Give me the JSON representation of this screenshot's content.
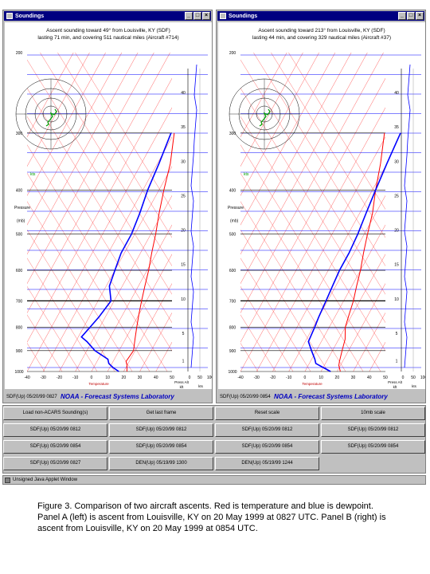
{
  "windows": [
    {
      "title": "Soundings",
      "header_line1": "Ascent sounding toward 49° from Louisville, KY (SDF)",
      "header_line2": "lasting 71 min, and covering 511 nautical miles (Aircraft #714)",
      "status_id": "SDF(Up) 05/20/99 0827",
      "temp": [
        [
          22,
          1000
        ],
        [
          20,
          970
        ],
        [
          18,
          950
        ],
        [
          19,
          900
        ],
        [
          16,
          850
        ],
        [
          13,
          800
        ],
        [
          10,
          750
        ],
        [
          7,
          700
        ],
        [
          4,
          650
        ],
        [
          1,
          600
        ],
        [
          -3,
          550
        ],
        [
          -7,
          500
        ],
        [
          -12,
          450
        ],
        [
          -17,
          400
        ],
        [
          -22,
          350
        ],
        [
          -30,
          300
        ]
      ],
      "dew": [
        [
          17,
          1000
        ],
        [
          12,
          980
        ],
        [
          8,
          960
        ],
        [
          6,
          940
        ],
        [
          -5,
          900
        ],
        [
          -13,
          860
        ],
        [
          -18,
          840
        ],
        [
          -16,
          800
        ],
        [
          -14,
          760
        ],
        [
          -12,
          700
        ],
        [
          -18,
          650
        ],
        [
          -20,
          600
        ],
        [
          -22,
          550
        ],
        [
          -22,
          500
        ],
        [
          -24,
          450
        ],
        [
          -27,
          400
        ],
        [
          -29,
          350
        ],
        [
          -32,
          300
        ]
      ]
    },
    {
      "title": "Soundings",
      "header_line1": "Ascent sounding toward 213° from Louisville, KY (SDF)",
      "header_line2": "lasting 44 min, and covering 329 nautical miles (Aircraft #37)",
      "status_id": "SDF(Up) 05/20/99 0854",
      "temp": [
        [
          22,
          1000
        ],
        [
          19,
          970
        ],
        [
          18,
          950
        ],
        [
          16,
          900
        ],
        [
          14,
          850
        ],
        [
          10,
          800
        ],
        [
          8,
          750
        ],
        [
          6,
          700
        ],
        [
          3,
          650
        ],
        [
          0,
          600
        ],
        [
          -4,
          550
        ],
        [
          -8,
          500
        ],
        [
          -12,
          450
        ],
        [
          -18,
          400
        ],
        [
          -24,
          350
        ],
        [
          -32,
          300
        ]
      ],
      "dew": [
        [
          16,
          1000
        ],
        [
          10,
          980
        ],
        [
          4,
          960
        ],
        [
          2,
          940
        ],
        [
          -3,
          900
        ],
        [
          -8,
          860
        ],
        [
          -9,
          800
        ],
        [
          -10,
          760
        ],
        [
          -11,
          700
        ],
        [
          -12,
          650
        ],
        [
          -13,
          600
        ],
        [
          -13,
          550
        ],
        [
          -14,
          500
        ],
        [
          -16,
          450
        ],
        [
          -18,
          400
        ],
        [
          -20,
          350
        ],
        [
          -22,
          300
        ]
      ]
    }
  ],
  "plot_labels": {
    "pressure_axis": "Pressure",
    "pressure_unit": "(mb)",
    "temperature_axis": "Temperature",
    "kts": "kts",
    "press_alt": "Press Alt",
    "press_alt_unit": "kft",
    "lab_name": "NOAA - Forecast Systems Laboratory"
  },
  "pressure_ticks": [
    "200",
    "300",
    "400",
    "500",
    "600",
    "700",
    "800",
    "900",
    "1000"
  ],
  "altitude_ticks": [
    "1",
    "5",
    "10",
    "15",
    "20",
    "25",
    "30",
    "35",
    "40"
  ],
  "temp_ticks": [
    "-40",
    "-30",
    "-20",
    "-10",
    "0",
    "10",
    "20",
    "30",
    "40",
    "50"
  ],
  "kts_ticks": [
    "0",
    "50",
    "100"
  ],
  "controls": {
    "rows": [
      [
        "Load non-ACARS Sounding(s)",
        "Get last frame",
        "Reset scale",
        "10mb scale"
      ],
      [
        "SDF(Up) 05/20/99 0812",
        "SDF(Up) 05/20/99 0812",
        "SDF(Up) 05/20/99 0812",
        "SDF(Up) 05/20/99 0812"
      ],
      [
        "SDF(Up) 05/20/99 0854",
        "SDF(Up) 05/20/99 0854",
        "SDF(Up) 05/20/99 0854",
        "SDF(Up) 05/20/99 0854"
      ],
      [
        "SDF(Up) 05/20/99 0827",
        "DEN(Up) 05/19/99 1300",
        "DEN(Up) 05/19/99 1244"
      ]
    ]
  },
  "app_window": "Unsigned Java Applet Window",
  "caption": "Figure 3.  Comparison of two aircraft ascents.  Red is temperature and blue is dewpoint.  Panel A (left) is ascent from Louisville, KY on 20 May 1999 at 0827 UTC.  Panel B (right) is ascent from Louisville, KY on 20 May 1999 at 0854 UTC.",
  "colors": {
    "temperature": "#ff0000",
    "dewpoint": "#0000ff",
    "title_bar": "#000080",
    "grid_blue": "#0000ff",
    "grid_red": "#ff6060",
    "hodograph": "#00a000"
  }
}
